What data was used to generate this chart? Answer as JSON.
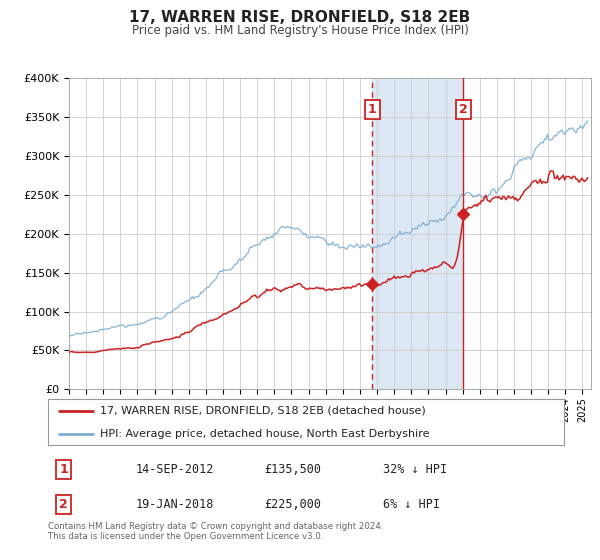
{
  "title": "17, WARREN RISE, DRONFIELD, S18 2EB",
  "subtitle": "Price paid vs. HM Land Registry's House Price Index (HPI)",
  "ylim": [
    0,
    400000
  ],
  "yticks": [
    0,
    50000,
    100000,
    150000,
    200000,
    250000,
    300000,
    350000,
    400000
  ],
  "ytick_labels": [
    "£0",
    "£50K",
    "£100K",
    "£150K",
    "£200K",
    "£250K",
    "£300K",
    "£350K",
    "£400K"
  ],
  "xlim_start": 1995.0,
  "xlim_end": 2025.5,
  "hpi_color": "#7aadd4",
  "price_color": "#cc2222",
  "sale1_date": 2012.71,
  "sale1_price": 135500,
  "sale2_date": 2018.05,
  "sale2_price": 225000,
  "shade_color": "#dde8f5",
  "bg_color": "#ffffff",
  "grid_color": "#cccccc",
  "legend1_label": "17, WARREN RISE, DRONFIELD, S18 2EB (detached house)",
  "legend2_label": "HPI: Average price, detached house, North East Derbyshire",
  "table_row1": [
    "1",
    "14-SEP-2012",
    "£135,500",
    "32% ↓ HPI"
  ],
  "table_row2": [
    "2",
    "19-JAN-2018",
    "£225,000",
    "6% ↓ HPI"
  ],
  "footer1": "Contains HM Land Registry data © Crown copyright and database right 2024.",
  "footer2": "This data is licensed under the Open Government Licence v3.0."
}
